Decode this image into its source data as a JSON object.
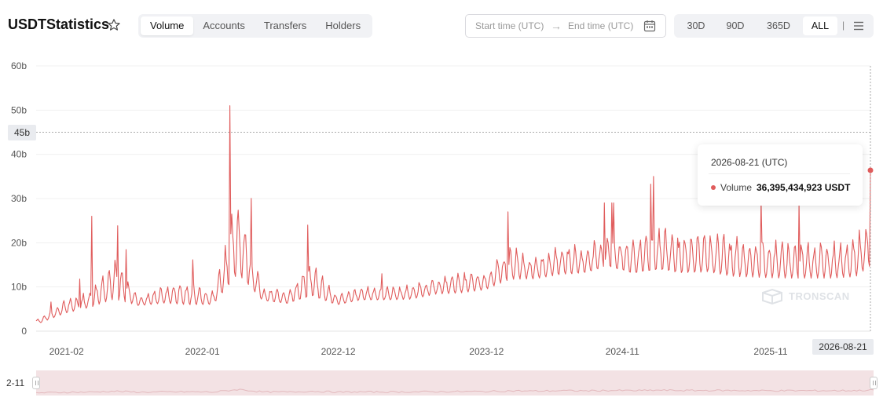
{
  "header": {
    "title": "USDTStatistics",
    "tabs": [
      {
        "label": "Volume",
        "active": true
      },
      {
        "label": "Accounts",
        "active": false
      },
      {
        "label": "Transfers",
        "active": false
      },
      {
        "label": "Holders",
        "active": false
      }
    ],
    "date_range": {
      "start_placeholder": "Start time (UTC)",
      "arrow": "→",
      "end_placeholder": "End time (UTC)"
    },
    "ranges": [
      {
        "label": "30D",
        "active": false
      },
      {
        "label": "90D",
        "active": false
      },
      {
        "label": "365D",
        "active": false
      },
      {
        "label": "ALL",
        "active": true
      }
    ],
    "separator": "|"
  },
  "tooltip": {
    "date": "2026-08-21 (UTC)",
    "series_label": "Volume",
    "value": "36,395,434,923 USDT"
  },
  "crosshair": {
    "y_label": "45b",
    "x_label": "2026-08-21"
  },
  "slider": {
    "start_label": "2-11"
  },
  "watermark": "TRONSCAN",
  "colors": {
    "series": "#e05c5c",
    "slider_bg": "#f3e2e4",
    "accent_badge": "#e9ebef"
  },
  "chart_data": {
    "type": "line",
    "title": "",
    "xlabel": "",
    "ylabel": "",
    "ylim": [
      0,
      60
    ],
    "y_unit": "b",
    "yticks": [
      "0",
      "10b",
      "20b",
      "30b",
      "40b",
      "50b",
      "60b"
    ],
    "xticks": [
      "2021-02",
      "2022-01",
      "2022-12",
      "2023-12",
      "2024-11",
      "2025-11"
    ],
    "grid": true,
    "series": [
      {
        "color": "#e05c5c",
        "x": [
          "2021-01",
          "2021-03",
          "2021-05",
          "2021-07",
          "2021-09",
          "2021-11",
          "2022-01",
          "2022-03",
          "2022-05",
          "2022-07",
          "2022-09",
          "2022-11",
          "2023-01",
          "2023-03",
          "2023-05",
          "2023-07",
          "2023-09",
          "2023-11",
          "2024-01",
          "2024-03",
          "2024-05",
          "2024-07",
          "2024-09",
          "2024-11",
          "2025-01",
          "2025-03",
          "2025-05",
          "2025-07",
          "2025-09",
          "2025-11",
          "2026-01",
          "2026-03",
          "2026-05",
          "2026-07",
          "2026-08"
        ],
        "low": [
          1.5,
          3,
          4,
          4,
          5,
          5,
          4,
          5,
          6,
          6,
          5,
          5,
          5,
          6,
          6,
          6,
          7,
          7,
          8,
          9,
          10,
          10,
          11,
          12,
          10,
          10,
          10,
          10,
          9,
          9,
          9,
          9,
          9,
          9,
          11
        ],
        "high": [
          4,
          10,
          13,
          26,
          10,
          14,
          17,
          12,
          51,
          12,
          13,
          24,
          11,
          13,
          13,
          14,
          16,
          18,
          17,
          27,
          22,
          28,
          25,
          29,
          29,
          35,
          30,
          32,
          31,
          30,
          29,
          29,
          29,
          31,
          36.4
        ]
      }
    ],
    "highlight": {
      "x": "2026-08-21",
      "y": 36.395434923
    },
    "crosshair_y": 45
  }
}
